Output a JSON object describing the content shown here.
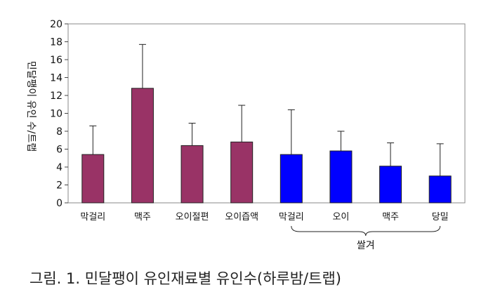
{
  "caption": "그림. 1. 민달팽이 유인재료별 유인수(하루밤/트랩)",
  "chart_data": {
    "type": "bar",
    "categories": [
      "막걸리",
      "맥주",
      "오이절편",
      "오이즙액",
      "막걸리",
      "오이",
      "맥주",
      "당밀"
    ],
    "values": [
      5.4,
      12.8,
      6.4,
      6.8,
      5.4,
      5.8,
      4.1,
      3.0
    ],
    "errors": [
      3.2,
      4.9,
      2.5,
      4.1,
      5.0,
      2.2,
      2.6,
      3.6
    ],
    "bar_colors": [
      "#993366",
      "#993366",
      "#993366",
      "#993366",
      "#0000ff",
      "#0000ff",
      "#0000ff",
      "#0000ff"
    ],
    "group_label": "쌀겨",
    "group_indices": [
      4,
      7
    ],
    "title": "",
    "xlabel": "",
    "ylabel": "민달팽이 유인 수/트랩",
    "ylim": [
      0,
      20
    ],
    "yticks": [
      0,
      2,
      4,
      6,
      8,
      10,
      12,
      14,
      16,
      18,
      20
    ],
    "grid": false
  }
}
